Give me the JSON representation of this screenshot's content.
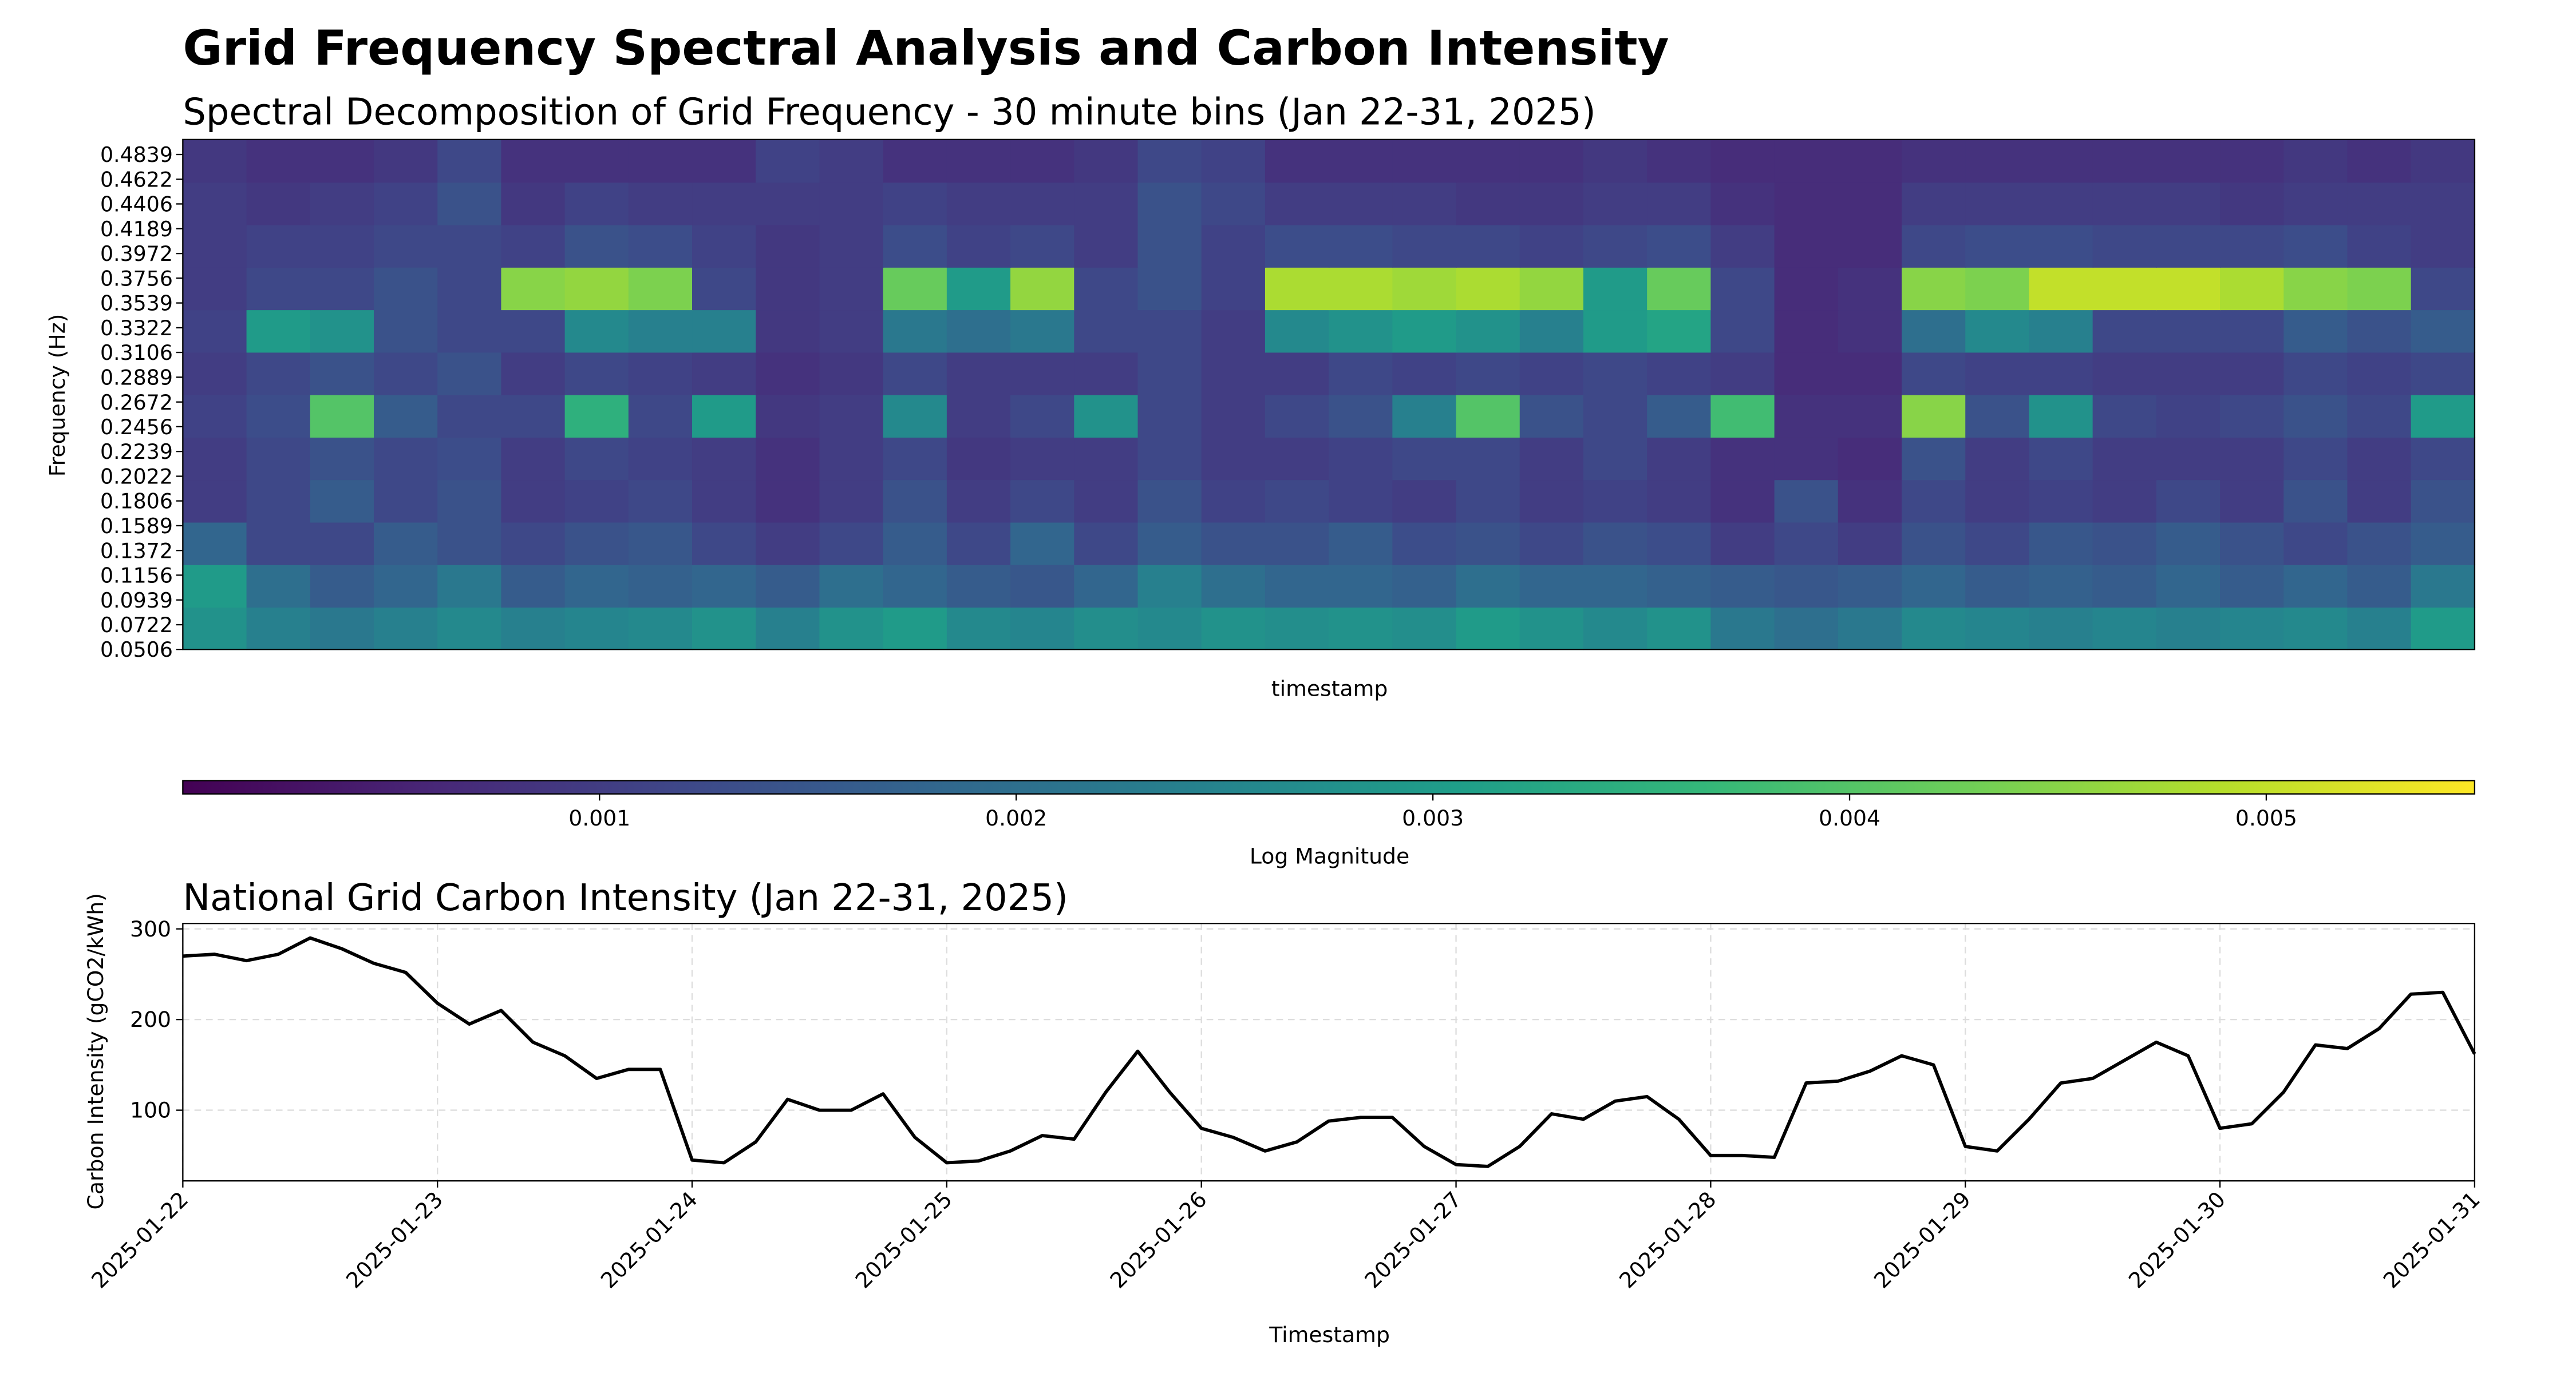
{
  "title": "Grid Frequency Spectral Analysis and Carbon Intensity",
  "chart_data": [
    {
      "type": "heatmap",
      "title": "Spectral Decomposition of Grid Frequency - 30 minute bins (Jan 22-31, 2025)",
      "ylabel": "Frequency (Hz)",
      "xlabel": "timestamp",
      "colormap": "viridis",
      "colorbar_label": "Log Magnitude",
      "clim": [
        0,
        0.0055
      ],
      "cticks": [
        0.001,
        0.002,
        0.003,
        0.004,
        0.005
      ],
      "ylim": [
        0.0506,
        0.497
      ],
      "yticks": [
        0.0506,
        0.0722,
        0.0939,
        0.1156,
        0.1372,
        0.1589,
        0.1806,
        0.2022,
        0.2239,
        0.2456,
        0.2672,
        0.2889,
        0.3106,
        0.3322,
        0.3539,
        0.3756,
        0.3972,
        0.4189,
        0.4406,
        0.4622,
        0.4839
      ],
      "z": [
        [
          0.0028,
          0.0024,
          0.0022,
          0.0024,
          0.0026,
          0.0024,
          0.0025,
          0.0026,
          0.0028,
          0.0024,
          0.0028,
          0.003,
          0.0026,
          0.0025,
          0.0027,
          0.0026,
          0.0028,
          0.0027,
          0.0028,
          0.0027,
          0.003,
          0.0028,
          0.0026,
          0.0028,
          0.0022,
          0.002,
          0.0022,
          0.0026,
          0.0025,
          0.0024,
          0.0025,
          0.0024,
          0.0025,
          0.0026,
          0.0024,
          0.003
        ],
        [
          0.003,
          0.002,
          0.0016,
          0.0018,
          0.0022,
          0.0016,
          0.0018,
          0.0017,
          0.0018,
          0.0016,
          0.002,
          0.0018,
          0.0016,
          0.0015,
          0.0018,
          0.0024,
          0.002,
          0.0018,
          0.0018,
          0.0017,
          0.002,
          0.0018,
          0.0018,
          0.0017,
          0.0016,
          0.0015,
          0.0016,
          0.0018,
          0.0016,
          0.0017,
          0.0016,
          0.0018,
          0.0016,
          0.0018,
          0.0016,
          0.0022
        ],
        [
          0.0018,
          0.0012,
          0.0012,
          0.0016,
          0.0014,
          0.0012,
          0.0014,
          0.0015,
          0.0012,
          0.001,
          0.0012,
          0.0016,
          0.0012,
          0.0018,
          0.0012,
          0.0016,
          0.0014,
          0.0014,
          0.0016,
          0.0013,
          0.0014,
          0.0012,
          0.0014,
          0.0013,
          0.001,
          0.0012,
          0.001,
          0.0014,
          0.0012,
          0.0015,
          0.0014,
          0.0016,
          0.0014,
          0.0012,
          0.0014,
          0.0016
        ],
        [
          0.001,
          0.0012,
          0.0016,
          0.0012,
          0.0014,
          0.001,
          0.0011,
          0.0012,
          0.001,
          0.0008,
          0.001,
          0.0014,
          0.001,
          0.0012,
          0.001,
          0.0014,
          0.0011,
          0.0012,
          0.0011,
          0.001,
          0.0012,
          0.001,
          0.0011,
          0.001,
          0.0008,
          0.0014,
          0.0008,
          0.0012,
          0.001,
          0.0011,
          0.001,
          0.0012,
          0.001,
          0.0014,
          0.001,
          0.0014
        ],
        [
          0.001,
          0.0012,
          0.0014,
          0.0012,
          0.0013,
          0.001,
          0.0012,
          0.0011,
          0.001,
          0.0008,
          0.001,
          0.0012,
          0.0009,
          0.001,
          0.001,
          0.0012,
          0.001,
          0.001,
          0.0011,
          0.0012,
          0.0012,
          0.001,
          0.0012,
          0.001,
          0.0008,
          0.0008,
          0.0007,
          0.0014,
          0.001,
          0.0012,
          0.001,
          0.001,
          0.001,
          0.0012,
          0.001,
          0.0012
        ],
        [
          0.0011,
          0.0013,
          0.004,
          0.0016,
          0.0012,
          0.0012,
          0.0035,
          0.0012,
          0.003,
          0.0009,
          0.001,
          0.0026,
          0.001,
          0.0012,
          0.0028,
          0.0012,
          0.001,
          0.0012,
          0.0014,
          0.0024,
          0.004,
          0.0014,
          0.0012,
          0.0016,
          0.0038,
          0.0008,
          0.0008,
          0.0045,
          0.0014,
          0.0028,
          0.0012,
          0.0011,
          0.0012,
          0.0014,
          0.0012,
          0.003
        ],
        [
          0.001,
          0.0012,
          0.0014,
          0.0012,
          0.0014,
          0.001,
          0.0012,
          0.0011,
          0.001,
          0.0008,
          0.0009,
          0.0012,
          0.001,
          0.001,
          0.001,
          0.0012,
          0.001,
          0.001,
          0.0012,
          0.0011,
          0.0012,
          0.0011,
          0.0012,
          0.0011,
          0.001,
          0.0007,
          0.0007,
          0.0012,
          0.0011,
          0.0011,
          0.001,
          0.001,
          0.001,
          0.0012,
          0.0011,
          0.0012
        ],
        [
          0.0011,
          0.003,
          0.0028,
          0.0014,
          0.0012,
          0.0012,
          0.0026,
          0.0024,
          0.0024,
          0.0009,
          0.001,
          0.0022,
          0.002,
          0.0022,
          0.0012,
          0.0012,
          0.001,
          0.0026,
          0.0028,
          0.003,
          0.0028,
          0.0024,
          0.003,
          0.0032,
          0.0012,
          0.0007,
          0.0008,
          0.002,
          0.0026,
          0.0024,
          0.0012,
          0.0012,
          0.0012,
          0.0016,
          0.0014,
          0.0016
        ],
        [
          0.001,
          0.0012,
          0.0012,
          0.0014,
          0.0012,
          0.0045,
          0.0046,
          0.0044,
          0.0012,
          0.0009,
          0.001,
          0.0042,
          0.003,
          0.0046,
          0.0012,
          0.0014,
          0.0011,
          0.0048,
          0.0048,
          0.0047,
          0.0048,
          0.0046,
          0.003,
          0.0042,
          0.0012,
          0.0007,
          0.0008,
          0.0045,
          0.0044,
          0.005,
          0.005,
          0.005,
          0.0048,
          0.0045,
          0.0044,
          0.0012
        ],
        [
          0.001,
          0.0011,
          0.0011,
          0.0012,
          0.0012,
          0.0011,
          0.0014,
          0.0013,
          0.0011,
          0.0009,
          0.001,
          0.0013,
          0.0011,
          0.0012,
          0.001,
          0.0014,
          0.0011,
          0.0013,
          0.0013,
          0.0012,
          0.0012,
          0.0011,
          0.0012,
          0.0013,
          0.001,
          0.0007,
          0.0007,
          0.0012,
          0.0013,
          0.0013,
          0.0012,
          0.0012,
          0.0012,
          0.0013,
          0.0011,
          0.001
        ],
        [
          0.001,
          0.0009,
          0.001,
          0.0011,
          0.0014,
          0.0009,
          0.0011,
          0.001,
          0.001,
          0.001,
          0.001,
          0.0011,
          0.001,
          0.001,
          0.001,
          0.0014,
          0.0012,
          0.001,
          0.001,
          0.001,
          0.0009,
          0.0009,
          0.001,
          0.001,
          0.0008,
          0.0007,
          0.0007,
          0.001,
          0.001,
          0.001,
          0.001,
          0.001,
          0.0009,
          0.001,
          0.001,
          0.001
        ],
        [
          0.0009,
          0.0008,
          0.0008,
          0.0009,
          0.0012,
          0.0008,
          0.0008,
          0.0008,
          0.0008,
          0.0011,
          0.001,
          0.0008,
          0.0008,
          0.0008,
          0.0009,
          0.0012,
          0.0011,
          0.0008,
          0.0008,
          0.0008,
          0.0008,
          0.0008,
          0.0009,
          0.0008,
          0.0007,
          0.0007,
          0.0007,
          0.0008,
          0.0008,
          0.0008,
          0.0008,
          0.0008,
          0.0008,
          0.0009,
          0.0008,
          0.0009
        ]
      ]
    },
    {
      "type": "line",
      "title": "National Grid Carbon Intensity (Jan 22-31, 2025)",
      "ylabel": "Carbon Intensity (gCO2/kWh)",
      "xlabel": "Timestamp",
      "color": "#000000",
      "grid": true,
      "xticks": [
        "2025-01-22",
        "2025-01-23",
        "2025-01-24",
        "2025-01-25",
        "2025-01-26",
        "2025-01-27",
        "2025-01-28",
        "2025-01-29",
        "2025-01-30",
        "2025-01-31"
      ],
      "ylim": [
        22,
        306
      ],
      "yticks": [
        100,
        200,
        300
      ],
      "values": [
        270,
        272,
        265,
        272,
        290,
        278,
        262,
        252,
        218,
        195,
        210,
        175,
        160,
        135,
        145,
        145,
        45,
        42,
        65,
        112,
        100,
        100,
        118,
        70,
        42,
        44,
        55,
        72,
        68,
        120,
        165,
        120,
        80,
        70,
        55,
        65,
        88,
        92,
        92,
        60,
        40,
        38,
        60,
        96,
        90,
        110,
        115,
        90,
        50,
        50,
        48,
        130,
        132,
        143,
        160,
        150,
        60,
        55,
        90,
        130,
        135,
        155,
        175,
        160,
        80,
        85,
        120,
        172,
        168,
        190,
        228,
        230,
        162
      ]
    }
  ]
}
